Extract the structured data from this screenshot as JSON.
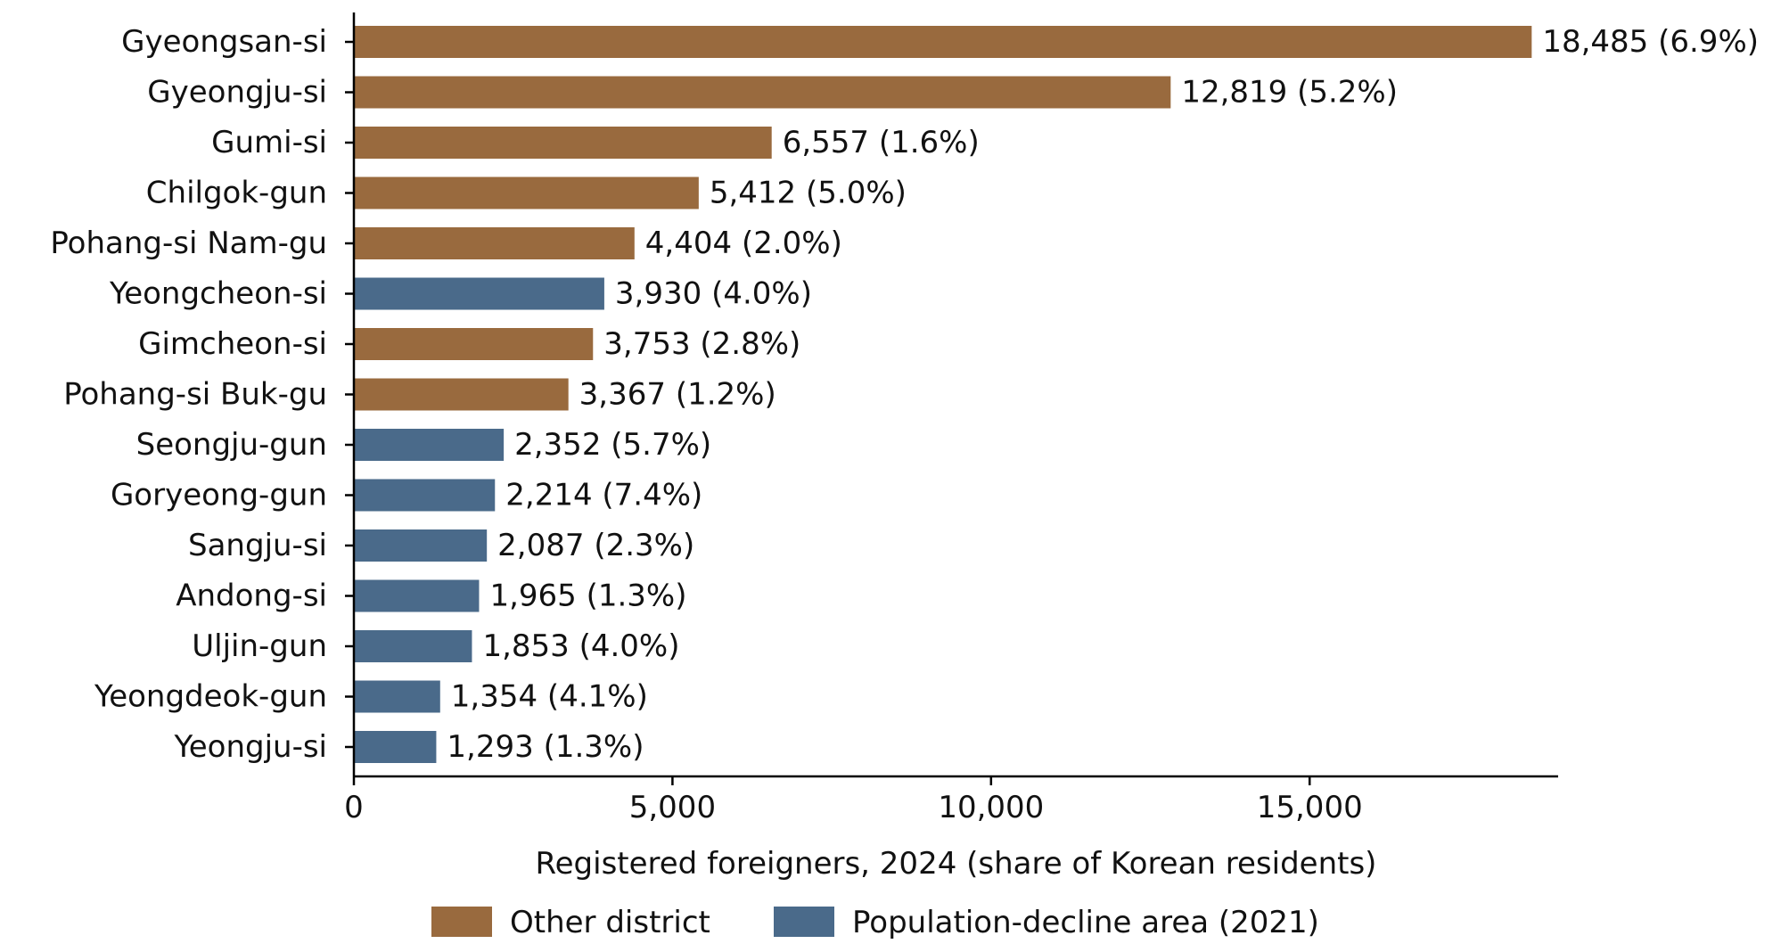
{
  "chart_data": {
    "type": "bar",
    "orientation": "horizontal",
    "title": "",
    "xlabel": "Registered foreigners, 2024 (share of Korean residents)",
    "ylabel": "",
    "xlim": [
      0,
      18900
    ],
    "xticks": [
      0,
      5000,
      10000,
      15000
    ],
    "xtick_labels": [
      "0",
      "5,000",
      "10,000",
      "15,000"
    ],
    "grid": false,
    "legend_position": "bottom",
    "groups": {
      "other": {
        "name": "Other district",
        "color": "#996A3E"
      },
      "decline": {
        "name": "Population-decline area (2021)",
        "color": "#4A6A8A"
      }
    },
    "categories": [
      "Gyeongsan-si",
      "Gyeongju-si",
      "Gumi-si",
      "Chilgok-gun",
      "Pohang-si Nam-gu",
      "Yeongcheon-si",
      "Gimcheon-si",
      "Pohang-si Buk-gu",
      "Seongju-gun",
      "Goryeong-gun",
      "Sangju-si",
      "Andong-si",
      "Uljin-gun",
      "Yeongdeok-gun",
      "Yeongju-si"
    ],
    "values": [
      18485,
      12819,
      6557,
      5412,
      4404,
      3930,
      3753,
      3367,
      2352,
      2214,
      2087,
      1965,
      1853,
      1354,
      1293
    ],
    "value_labels": [
      "18,485 (6.9%)",
      "12,819 (5.2%)",
      "6,557 (1.6%)",
      "5,412 (5.0%)",
      "4,404 (2.0%)",
      "3,930 (4.0%)",
      "3,753 (2.8%)",
      "3,367 (1.2%)",
      "2,352 (5.7%)",
      "2,214 (7.4%)",
      "2,087 (2.3%)",
      "1,965 (1.3%)",
      "1,853 (4.0%)",
      "1,354 (4.1%)",
      "1,293 (1.3%)"
    ],
    "bar_groups": [
      "other",
      "other",
      "other",
      "other",
      "other",
      "decline",
      "other",
      "other",
      "decline",
      "decline",
      "decline",
      "decline",
      "decline",
      "decline",
      "decline"
    ]
  }
}
